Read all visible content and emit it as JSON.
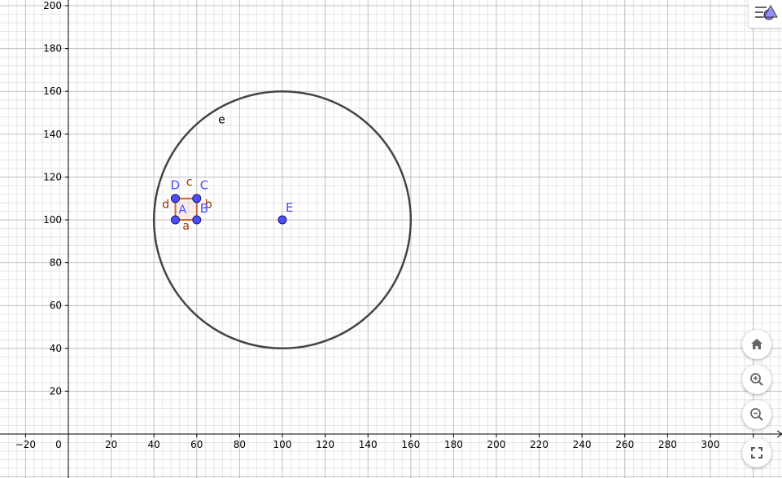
{
  "graphics": {
    "x_ticks": [
      "−20",
      "0",
      "20",
      "40",
      "60",
      "80",
      "100",
      "120",
      "140",
      "160",
      "180",
      "200",
      "220",
      "240",
      "260",
      "280",
      "300"
    ],
    "y_ticks": [
      "20",
      "40",
      "60",
      "80",
      "100",
      "120",
      "140",
      "160",
      "180",
      "200"
    ],
    "circle": {
      "label": "e",
      "center": [
        100,
        100
      ],
      "radius": 60
    },
    "square": {
      "label": "A",
      "vertices": [
        [
          50,
          100
        ],
        [
          60,
          100
        ],
        [
          60,
          110
        ],
        [
          50,
          110
        ]
      ],
      "side_labels": [
        "a",
        "b",
        "c",
        "d"
      ]
    },
    "points": [
      {
        "name": "A",
        "x": 50,
        "y": 100
      },
      {
        "name": "B",
        "x": 60,
        "y": 100
      },
      {
        "name": "C",
        "x": 60,
        "y": 110
      },
      {
        "name": "D",
        "x": 50,
        "y": 110
      },
      {
        "name": "E",
        "x": 100,
        "y": 100
      }
    ],
    "colors": {
      "point": "#4d4dff",
      "point_label": "#4d4dff",
      "polygon": "#cc6633",
      "segment_label": "#993300",
      "circle": "#444444",
      "grid_major": "#c0c0c0",
      "grid_minor": "#e6e6e6",
      "axis": "#000000"
    }
  },
  "toolbar": {
    "menu_icon": "style-bar-toggle-icon",
    "buttons": [
      {
        "name": "standard-view-button",
        "icon": "home-icon"
      },
      {
        "name": "zoom-in-button",
        "icon": "zoom-in-icon"
      },
      {
        "name": "zoom-out-button",
        "icon": "zoom-out-icon"
      },
      {
        "name": "fullscreen-button",
        "icon": "fullscreen-icon"
      }
    ]
  }
}
